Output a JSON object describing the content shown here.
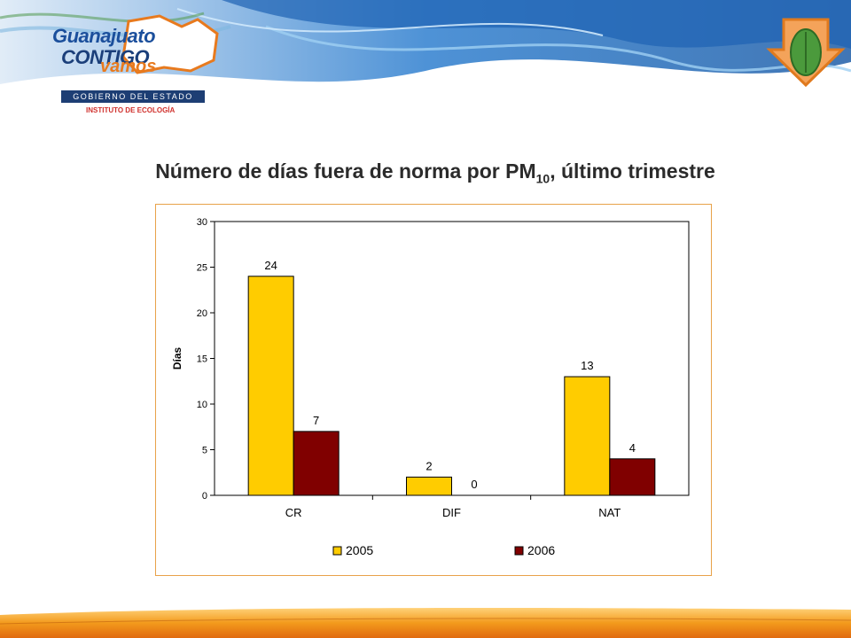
{
  "header": {
    "logo_line1": "Guanajuato",
    "logo_line2": "CONTIGO",
    "logo_line3": "vamos",
    "logo_govt": "GOBIERNO DEL ESTADO",
    "logo_inst": "INSTITUTO DE ECOLOGÍA"
  },
  "title": {
    "main": "Número de días fuera de norma por PM",
    "sub": "10",
    "rest": ", último trimestre"
  },
  "colors": {
    "s2005": "#ffcc00",
    "s2006": "#800000",
    "frame": "#e8a24a"
  },
  "chart_data": {
    "type": "bar",
    "categories": [
      "CR",
      "DIF",
      "NAT"
    ],
    "series": [
      {
        "name": "2005",
        "values": [
          24,
          2,
          13
        ]
      },
      {
        "name": "2006",
        "values": [
          7,
          0,
          4
        ]
      }
    ],
    "ylabel": "Días",
    "ylim": [
      0,
      30
    ],
    "yticks": [
      "0",
      "5",
      "10",
      "15",
      "20",
      "25",
      "30"
    ],
    "legend": "bottom"
  }
}
